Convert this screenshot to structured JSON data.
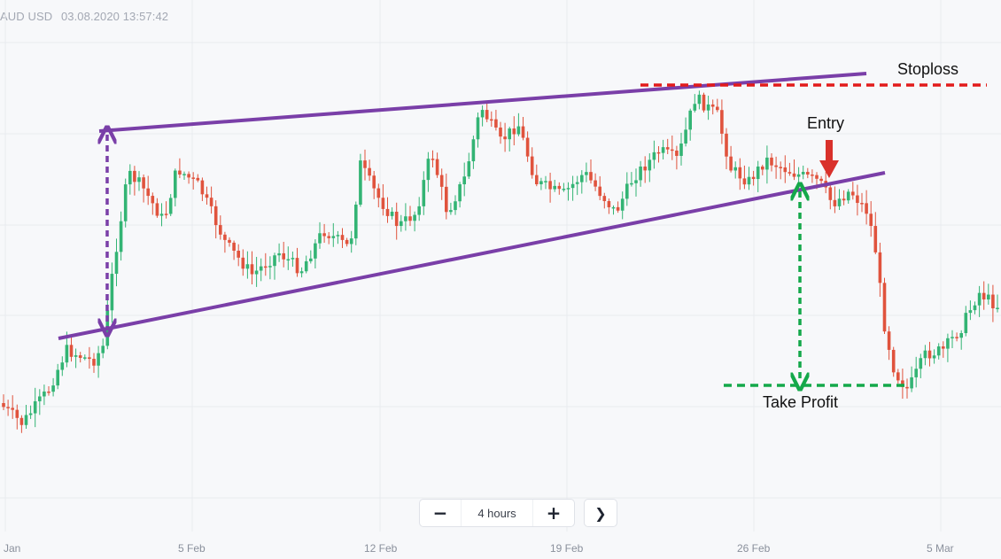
{
  "header": {
    "symbol": "AUD USD",
    "datetime": "03.08.2020 13:57:42"
  },
  "controls": {
    "minus_label": "−",
    "zoom_label": "4 hours",
    "plus_label": "+",
    "next_label": "❯"
  },
  "chart_data": {
    "type": "candlestick",
    "title": "",
    "x_tick_labels": [
      "Jan",
      "5 Feb",
      "12 Feb",
      "19 Feb",
      "26 Feb",
      "5 Mar"
    ],
    "colors": {
      "up": "#33b474",
      "down": "#e0533d",
      "pattern": "#7a3fa8",
      "stoploss": "#e21b1b",
      "take_profit": "#14a84a",
      "entry": "#d9312b"
    },
    "annotations": {
      "stoploss": "Stoploss",
      "entry": "Entry",
      "take_profit": "Take Profit"
    },
    "grid": true,
    "pattern": "rising wedge"
  }
}
